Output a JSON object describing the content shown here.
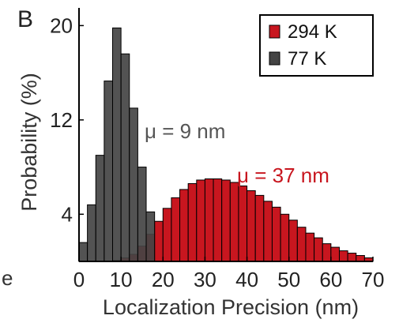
{
  "panel_label": "B",
  "side_glyph": "e",
  "chart_data": {
    "type": "bar",
    "title": "",
    "xlabel": "Localization Precision (nm)",
    "ylabel": "Probability (%)",
    "xlim": [
      0,
      70
    ],
    "ylim": [
      0,
      21.5
    ],
    "xticks": [
      0,
      10,
      20,
      30,
      40,
      50,
      60,
      70
    ],
    "yticks": [
      4,
      12,
      20
    ],
    "bin_width": 2,
    "legend_position": "top-right",
    "grid": false,
    "series": [
      {
        "name": "294 K",
        "color": "#c8161f",
        "bin_starts": [
          8,
          10,
          12,
          14,
          16,
          18,
          20,
          22,
          24,
          26,
          28,
          30,
          32,
          34,
          36,
          38,
          40,
          42,
          44,
          46,
          48,
          50,
          52,
          54,
          56,
          58,
          60,
          62,
          64,
          66,
          68
        ],
        "values": [
          0.1,
          0.3,
          0.6,
          1.3,
          2.3,
          3.4,
          4.5,
          5.4,
          6.1,
          6.6,
          6.9,
          7.0,
          7.0,
          6.9,
          6.7,
          6.4,
          6.0,
          5.6,
          5.1,
          4.6,
          4.0,
          3.5,
          2.9,
          2.4,
          2.0,
          1.5,
          1.2,
          0.9,
          0.7,
          0.5,
          0.3
        ]
      },
      {
        "name": "77 K",
        "color": "#444444",
        "bin_starts": [
          0,
          2,
          4,
          6,
          8,
          10,
          12,
          14,
          16
        ],
        "values": [
          1.6,
          4.8,
          9.0,
          15.3,
          19.8,
          17.6,
          13.0,
          8.0,
          4.2
        ]
      }
    ],
    "annotations": [
      {
        "text": "μ = 9 nm",
        "color": "#555555"
      },
      {
        "text": "μ = 37 nm",
        "color": "#c8161f"
      }
    ]
  }
}
